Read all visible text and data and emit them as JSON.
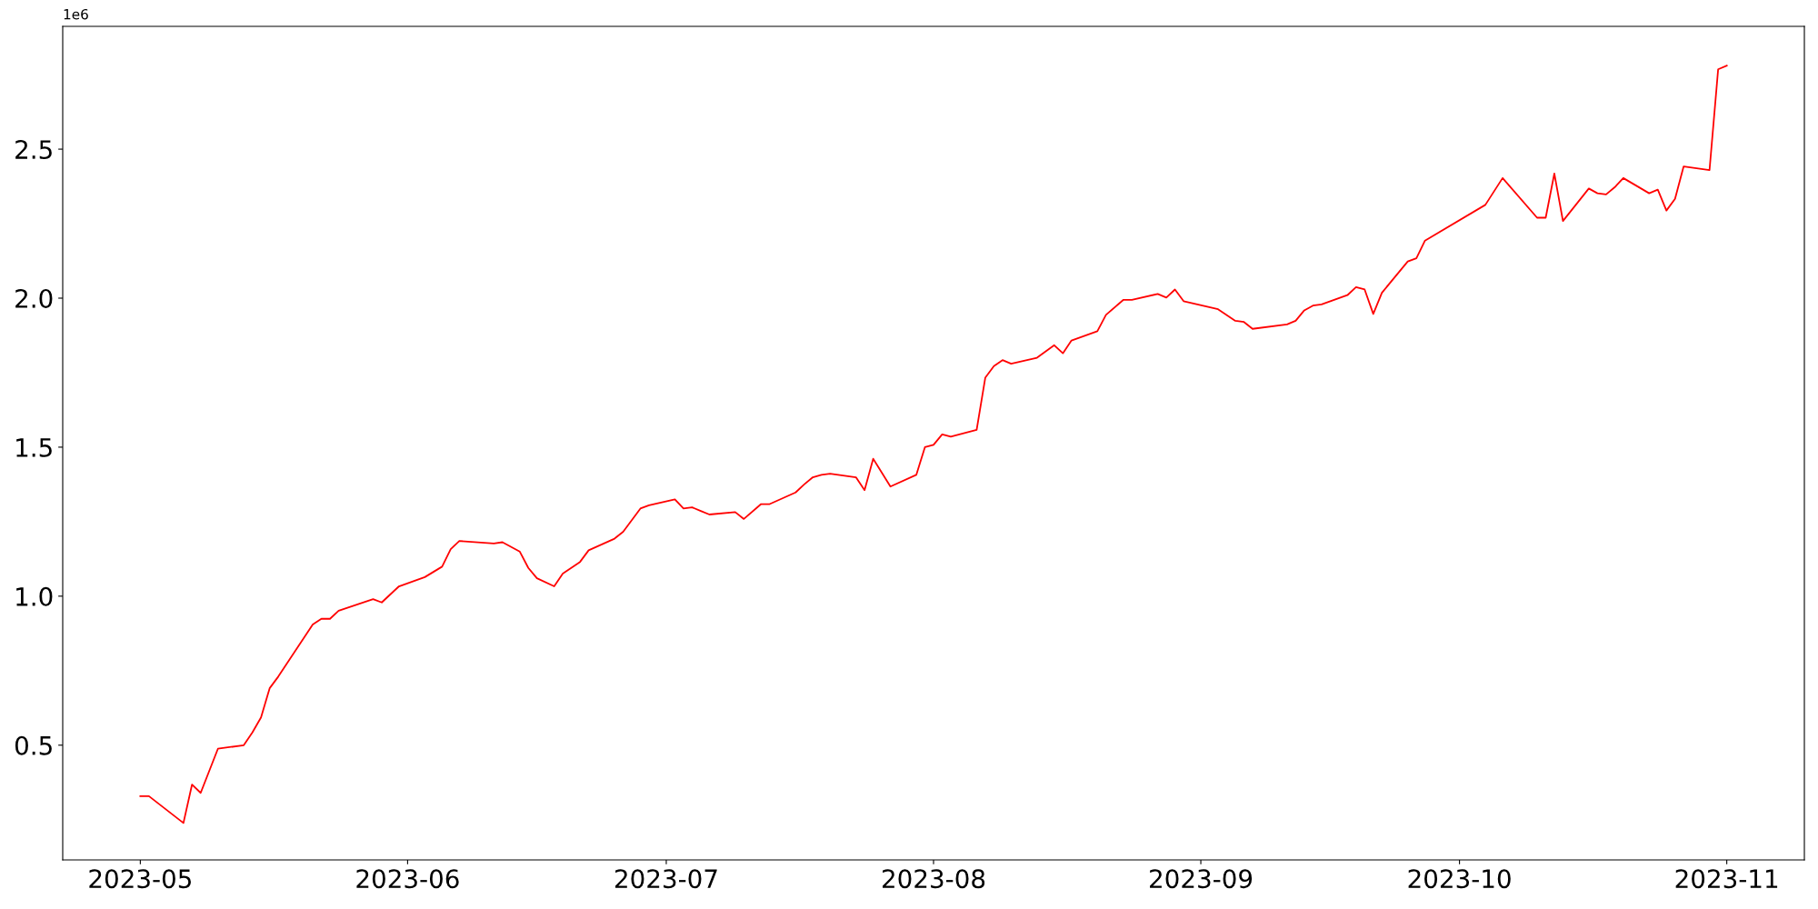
{
  "chart_data": {
    "type": "line",
    "x": [
      "2023-05-01",
      "2023-05-02",
      "2023-05-06",
      "2023-05-07",
      "2023-05-08",
      "2023-05-10",
      "2023-05-13",
      "2023-05-14",
      "2023-05-15",
      "2023-05-16",
      "2023-05-17",
      "2023-05-21",
      "2023-05-22",
      "2023-05-23",
      "2023-05-24",
      "2023-05-28",
      "2023-05-29",
      "2023-05-31",
      "2023-06-03",
      "2023-06-05",
      "2023-06-06",
      "2023-06-07",
      "2023-06-11",
      "2023-06-12",
      "2023-06-14",
      "2023-06-15",
      "2023-06-16",
      "2023-06-18",
      "2023-06-19",
      "2023-06-21",
      "2023-06-22",
      "2023-06-25",
      "2023-06-26",
      "2023-06-27",
      "2023-06-28",
      "2023-06-29",
      "2023-07-02",
      "2023-07-03",
      "2023-07-04",
      "2023-07-05",
      "2023-07-06",
      "2023-07-09",
      "2023-07-10",
      "2023-07-12",
      "2023-07-13",
      "2023-07-16",
      "2023-07-17",
      "2023-07-18",
      "2023-07-19",
      "2023-07-20",
      "2023-07-23",
      "2023-07-24",
      "2023-07-25",
      "2023-07-27",
      "2023-07-30",
      "2023-07-31",
      "2023-08-01",
      "2023-08-02",
      "2023-08-03",
      "2023-08-06",
      "2023-08-07",
      "2023-08-08",
      "2023-08-09",
      "2023-08-10",
      "2023-08-13",
      "2023-08-15",
      "2023-08-16",
      "2023-08-17",
      "2023-08-20",
      "2023-08-21",
      "2023-08-23",
      "2023-08-24",
      "2023-08-27",
      "2023-08-28",
      "2023-08-29",
      "2023-08-30",
      "2023-09-03",
      "2023-09-05",
      "2023-09-06",
      "2023-09-07",
      "2023-09-11",
      "2023-09-12",
      "2023-09-13",
      "2023-09-14",
      "2023-09-15",
      "2023-09-18",
      "2023-09-19",
      "2023-09-20",
      "2023-09-21",
      "2023-09-22",
      "2023-09-25",
      "2023-09-26",
      "2023-09-27",
      "2023-10-04",
      "2023-10-06",
      "2023-10-10",
      "2023-10-11",
      "2023-10-12",
      "2023-10-13",
      "2023-10-16",
      "2023-10-17",
      "2023-10-18",
      "2023-10-19",
      "2023-10-20",
      "2023-10-23",
      "2023-10-24",
      "2023-10-25",
      "2023-10-26",
      "2023-10-27",
      "2023-10-30",
      "2023-10-31",
      "2023-11-01"
    ],
    "series": [
      {
        "color": "#ff0000",
        "values": [
          0.329,
          0.329,
          0.239,
          0.368,
          0.34,
          0.488,
          0.5,
          0.543,
          0.593,
          0.691,
          0.73,
          0.905,
          0.924,
          0.924,
          0.951,
          0.99,
          0.979,
          1.033,
          1.064,
          1.099,
          1.158,
          1.185,
          1.177,
          1.181,
          1.15,
          1.095,
          1.06,
          1.033,
          1.076,
          1.115,
          1.154,
          1.193,
          1.216,
          1.255,
          1.294,
          1.305,
          1.325,
          1.294,
          1.298,
          1.286,
          1.274,
          1.282,
          1.259,
          1.309,
          1.309,
          1.348,
          1.375,
          1.399,
          1.407,
          1.411,
          1.399,
          1.356,
          1.461,
          1.368,
          1.407,
          1.5,
          1.508,
          1.543,
          1.535,
          1.558,
          1.733,
          1.772,
          1.792,
          1.78,
          1.8,
          1.842,
          1.815,
          1.858,
          1.889,
          1.944,
          1.994,
          1.994,
          2.014,
          2.002,
          2.029,
          1.99,
          1.963,
          1.924,
          1.92,
          1.897,
          1.912,
          1.924,
          1.959,
          1.975,
          1.979,
          2.01,
          2.037,
          2.029,
          1.947,
          2.018,
          2.123,
          2.134,
          2.193,
          2.313,
          2.403,
          2.27,
          2.27,
          2.418,
          2.259,
          2.368,
          2.352,
          2.348,
          2.372,
          2.403,
          2.352,
          2.364,
          2.294,
          2.333,
          2.442,
          2.43,
          2.768,
          2.78
        ]
      }
    ],
    "xlim": [
      "2023-04-22",
      "2023-11-10"
    ],
    "xticks": [
      "2023-05",
      "2023-06",
      "2023-07",
      "2023-08",
      "2023-09",
      "2023-10",
      "2023-11"
    ],
    "ylim": [
      0.115,
      2.912
    ],
    "yticks": [
      0.5,
      {
        "value": 1,
        "label": "1.0"
      },
      1.5,
      {
        "value": 2,
        "label": "2.0"
      },
      2.5
    ],
    "annotations": [
      "1e6"
    ],
    "grid": false,
    "legend": false,
    "marker": "none",
    "line_style": "solid"
  }
}
